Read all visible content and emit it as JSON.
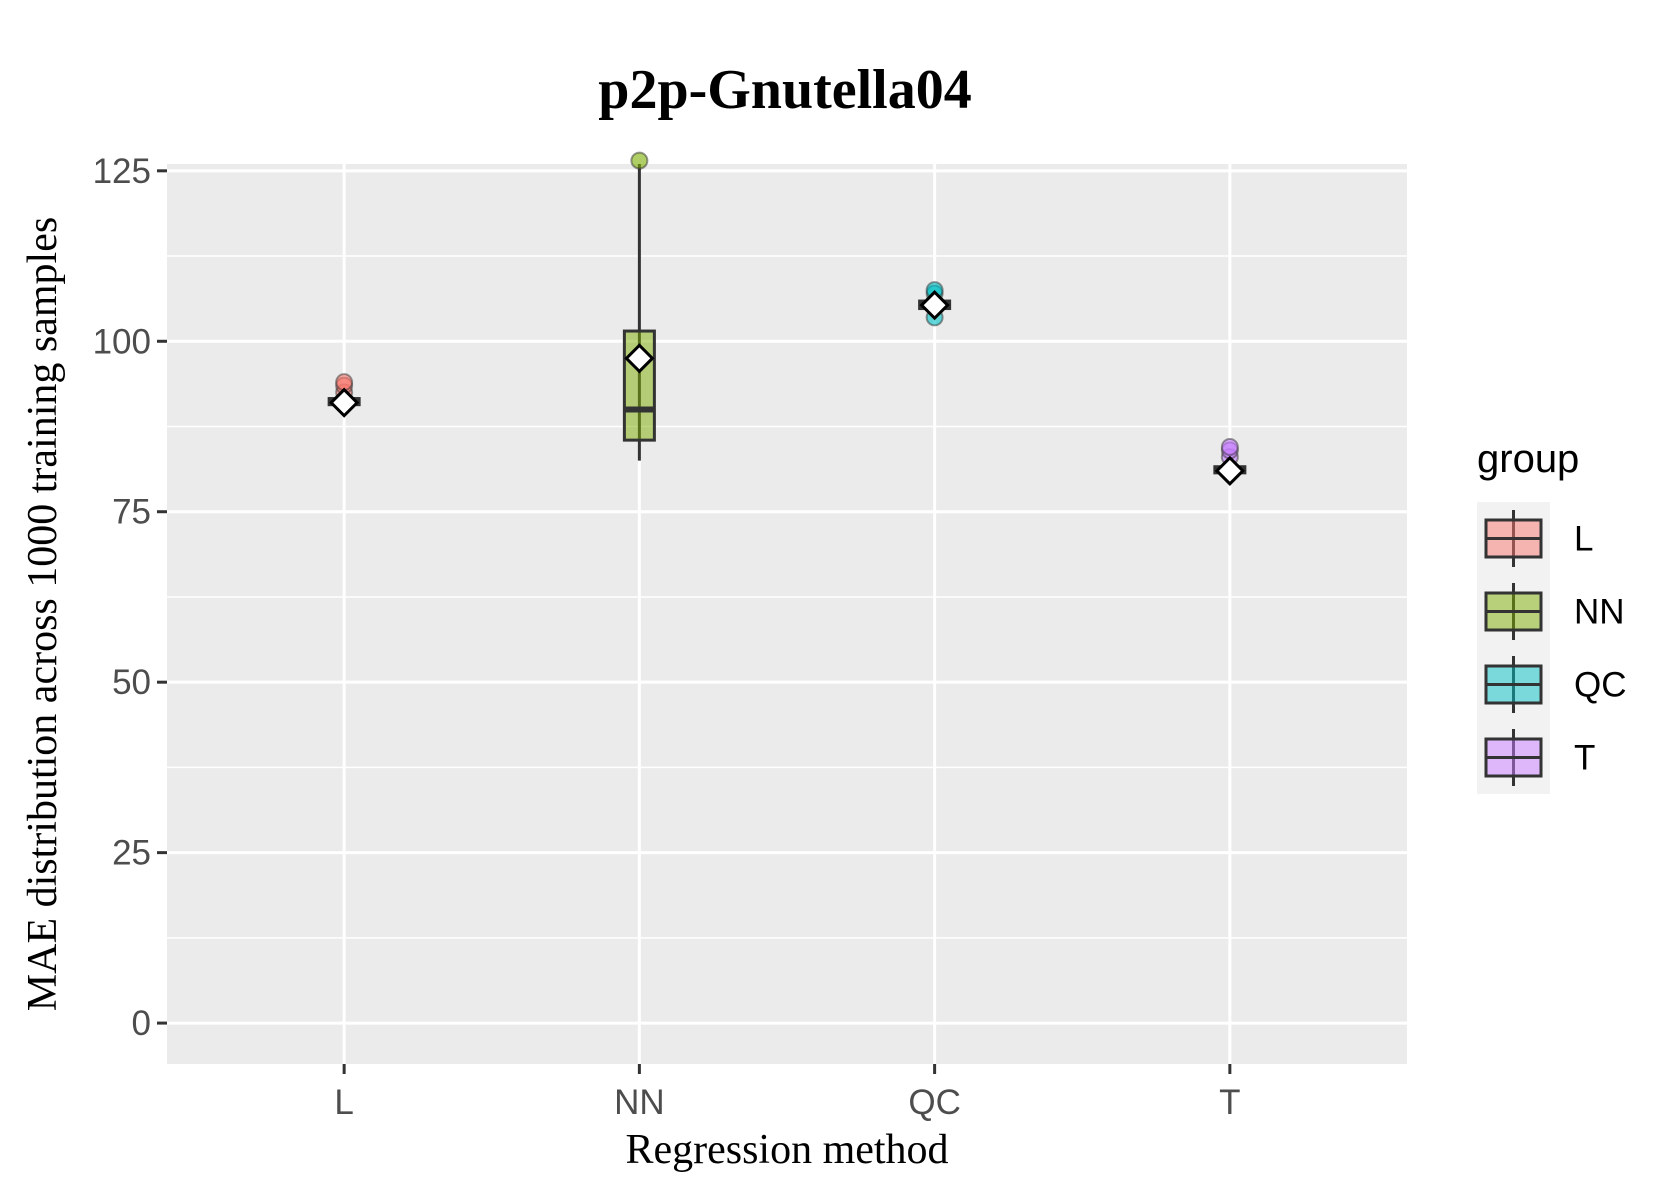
{
  "chart_data": {
    "type": "boxplot",
    "title": "p2p-Gnutella04",
    "xlabel": "Regression method",
    "ylabel": "MAE distribution across 1000 training samples",
    "ylim": [
      -6,
      126
    ],
    "yticks": [
      0,
      25,
      50,
      75,
      100,
      125
    ],
    "ytick_labels": [
      "0",
      "25",
      "50",
      "75",
      "100",
      "125"
    ],
    "categories": [
      "L",
      "NN",
      "QC",
      "T"
    ],
    "series": [
      {
        "name": "L",
        "color": "#F8766D",
        "whisker_low": 90.5,
        "q1": 90.7,
        "median": 91.0,
        "q3": 91.6,
        "whisker_high": 92.0,
        "mean": 91.0,
        "outliers": [
          92.5,
          93.5,
          94.0
        ]
      },
      {
        "name": "NN",
        "color": "#7CAE00",
        "whisker_low": 82.5,
        "q1": 85.5,
        "median": 90.0,
        "q3": 101.5,
        "whisker_high": 126.0,
        "mean": 97.5,
        "outliers": [
          126.5
        ]
      },
      {
        "name": "QC",
        "color": "#00BFC4",
        "whisker_low": 104.5,
        "q1": 104.8,
        "median": 105.3,
        "q3": 105.9,
        "whisker_high": 106.5,
        "mean": 105.3,
        "outliers": [
          103.5,
          107.0,
          107.5
        ]
      },
      {
        "name": "T",
        "color": "#C77CFF",
        "whisker_low": 80.5,
        "q1": 80.7,
        "median": 81.1,
        "q3": 81.6,
        "whisker_high": 82.0,
        "mean": 81.0,
        "outliers": [
          83.0,
          84.0,
          84.5
        ]
      }
    ],
    "legend": {
      "title": "group",
      "position": "right",
      "entries": [
        "L",
        "NN",
        "QC",
        "T"
      ]
    },
    "grid": true,
    "background": "#EBEBEB"
  }
}
